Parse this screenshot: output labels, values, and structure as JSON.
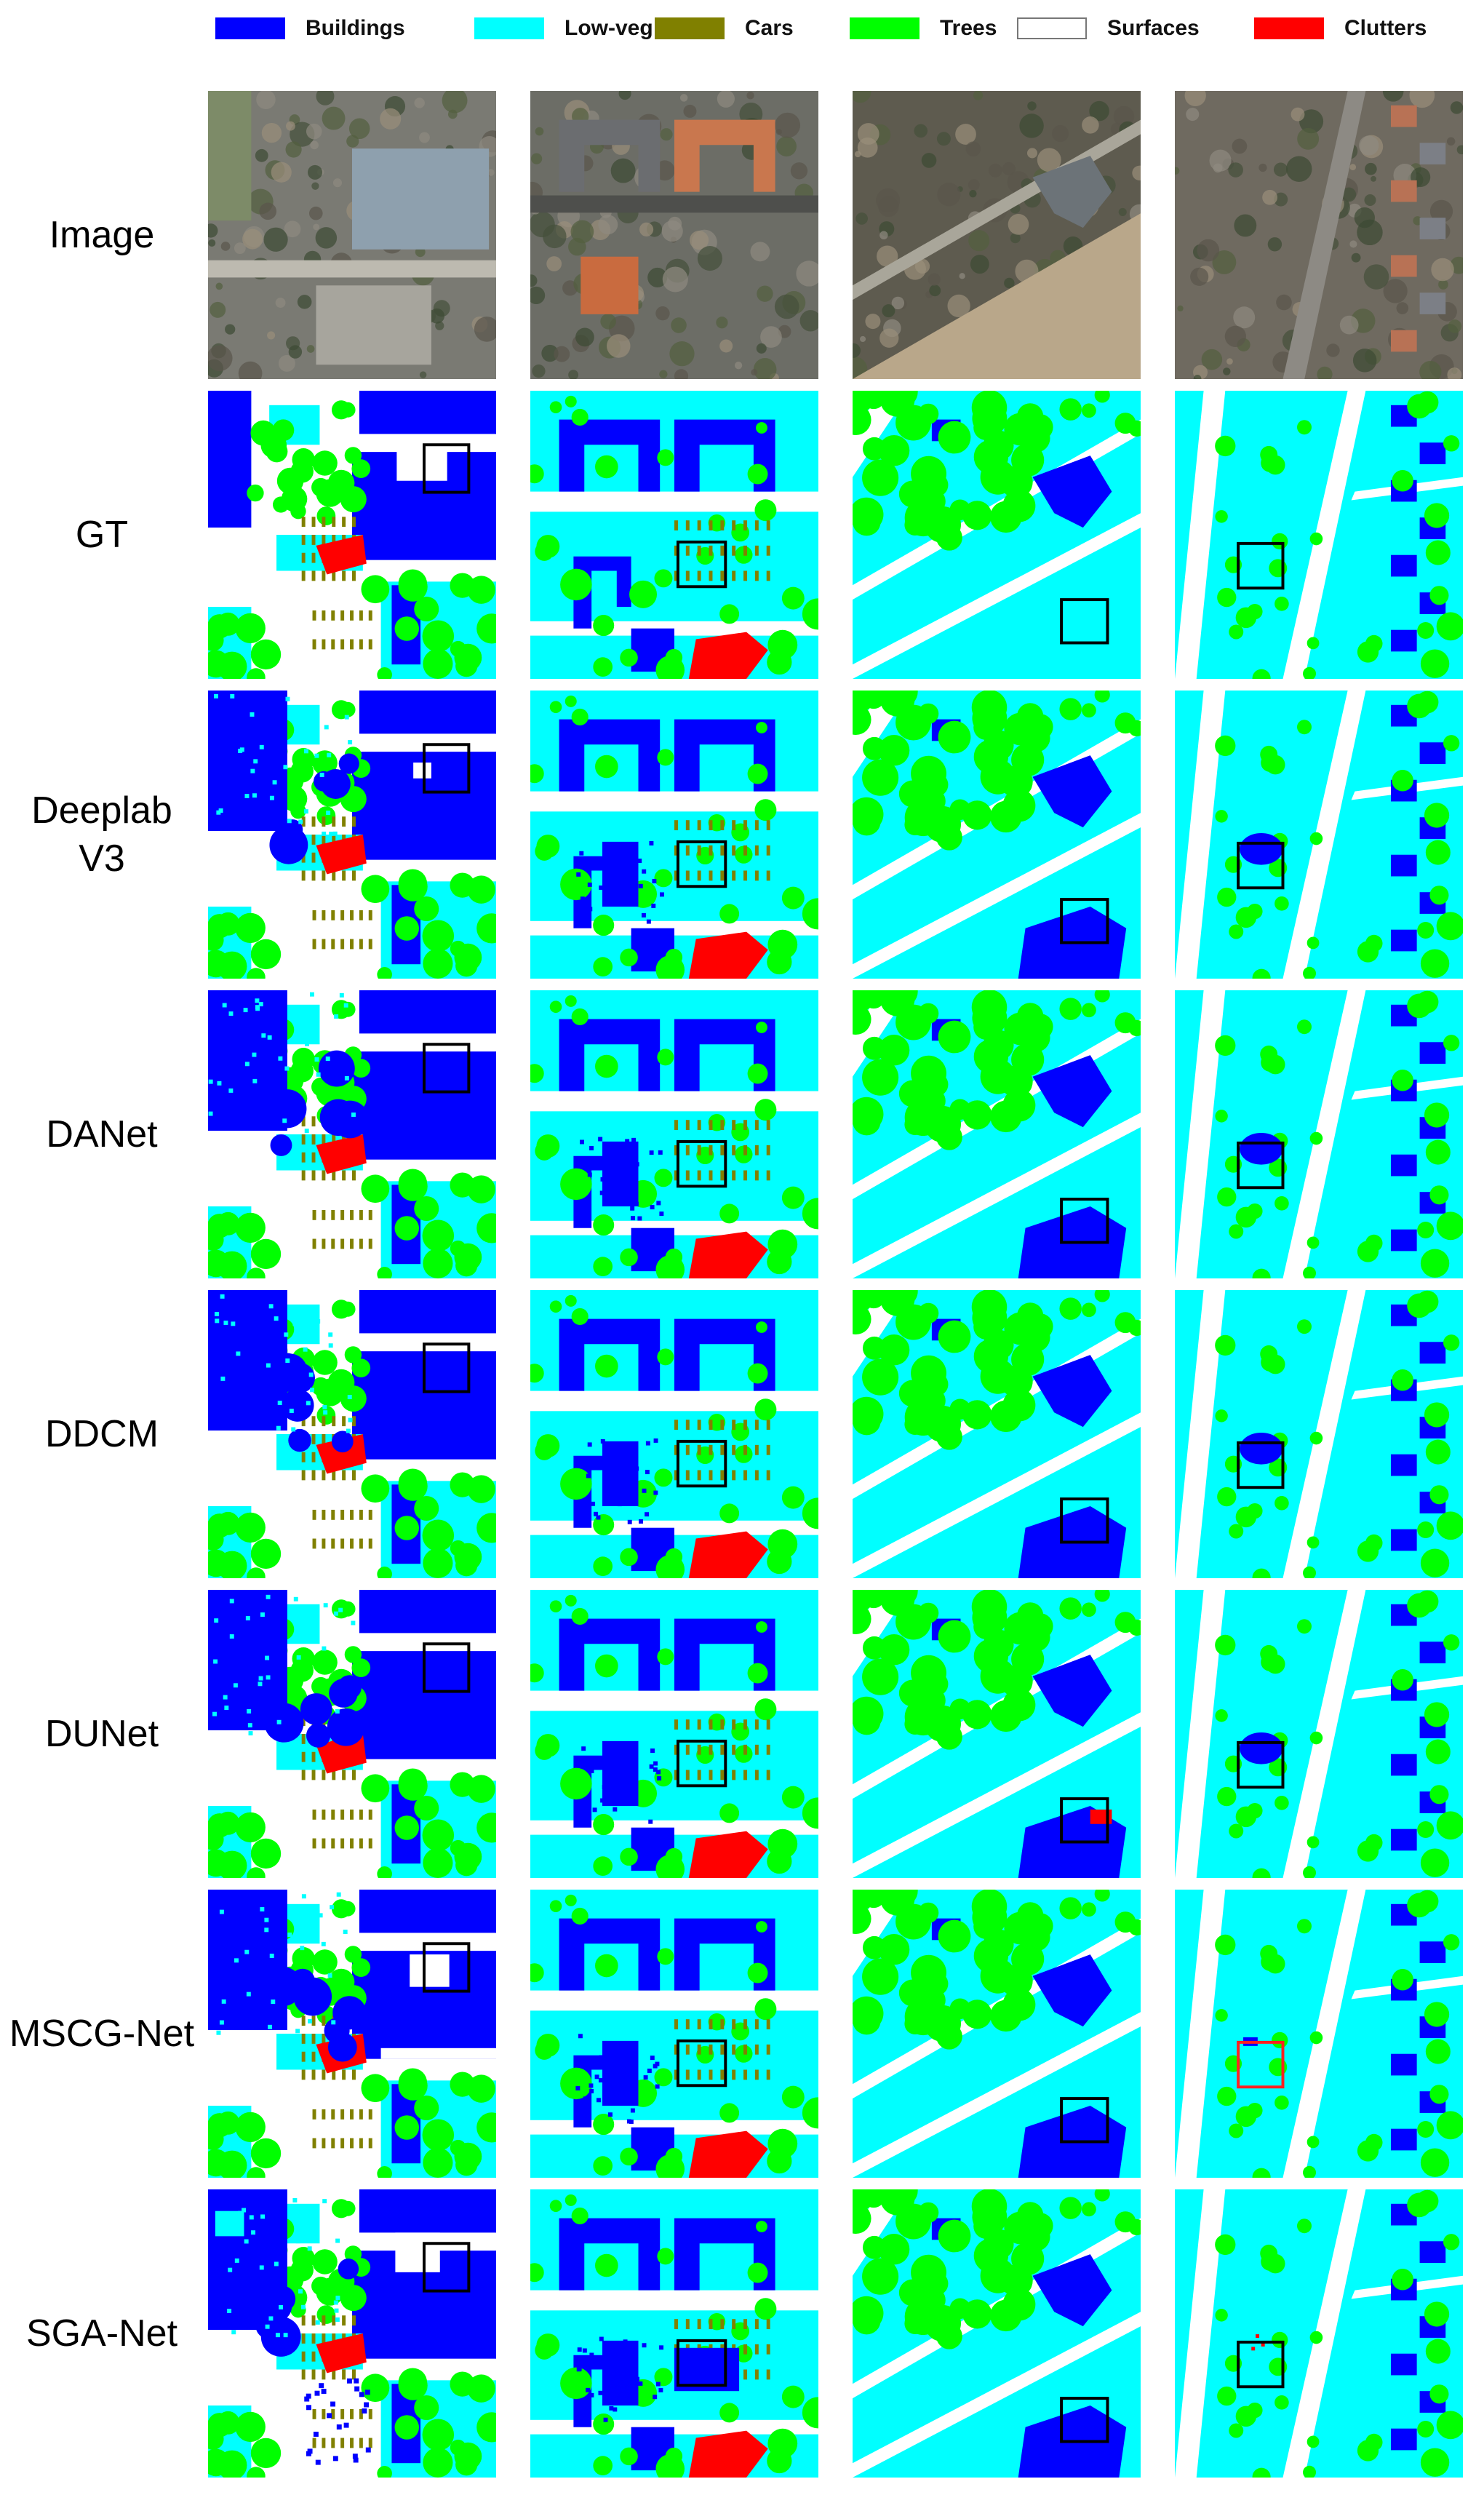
{
  "legend": {
    "items": [
      {
        "label": "Buildings",
        "color": "#0000ff",
        "outline": false
      },
      {
        "label": "Low-veg",
        "color": "#00ffff",
        "outline": false
      },
      {
        "label": "Cars",
        "color": "#808000",
        "outline": false
      },
      {
        "label": "Trees",
        "color": "#00ff00",
        "outline": false
      },
      {
        "label": "Surfaces",
        "color": "#ffffff",
        "outline": true
      },
      {
        "label": "Clutters",
        "color": "#ff0000",
        "outline": false
      }
    ]
  },
  "rows": [
    {
      "label_lines": [
        "Image"
      ]
    },
    {
      "label_lines": [
        "GT"
      ]
    },
    {
      "label_lines": [
        "Deeplab",
        "V3"
      ]
    },
    {
      "label_lines": [
        "DANet"
      ]
    },
    {
      "label_lines": [
        "DDCM"
      ]
    },
    {
      "label_lines": [
        "DUNet"
      ]
    },
    {
      "label_lines": [
        "MSCG-Net"
      ]
    },
    {
      "label_lines": [
        "SGA-Net"
      ]
    }
  ],
  "highlight": {
    "default_color": "#000000",
    "flagged_color": "#ff2020"
  }
}
